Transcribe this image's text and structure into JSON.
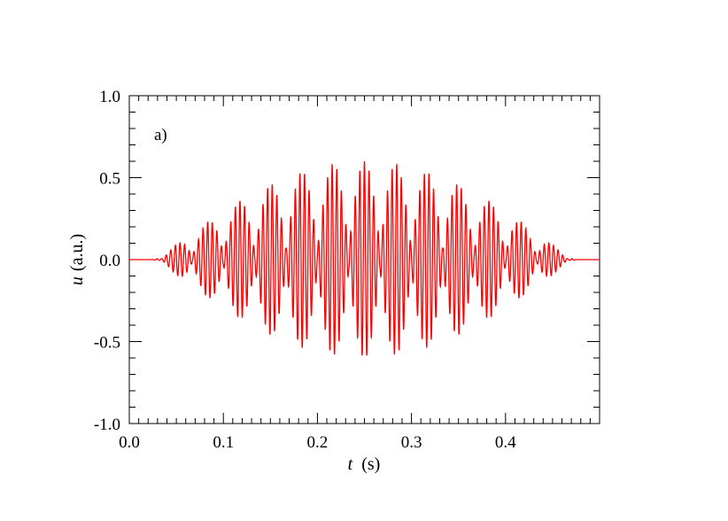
{
  "chart_data": {
    "type": "line",
    "panel_label": "a)",
    "xlabel": {
      "symbol": "t",
      "unit": "(s)"
    },
    "ylabel": {
      "symbol": "u",
      "unit": "(a.u.)"
    },
    "xlim": [
      0.0,
      0.5
    ],
    "ylim": [
      -1.0,
      1.0
    ],
    "x_ticks": [
      0.0,
      0.1,
      0.2,
      0.3,
      0.4
    ],
    "x_tick_labels": [
      "0.0",
      "0.1",
      "0.2",
      "0.3",
      "0.4"
    ],
    "y_ticks": [
      1.0,
      0.5,
      0.0,
      -0.5,
      -1.0
    ],
    "y_tick_labels": [
      "1.0",
      "0.5",
      "0.0",
      "-0.5",
      "-1.0"
    ],
    "grid": false,
    "line_color": "#ff0000",
    "series": [
      {
        "x_start": 0.0,
        "x_end": 0.48,
        "envelope_center": 0.25,
        "envelope_halfwidth": 0.225,
        "peak_amplitude": 0.6,
        "carrier_frequency_hz": 204,
        "beat_frequency_hz": 30
      }
    ]
  }
}
